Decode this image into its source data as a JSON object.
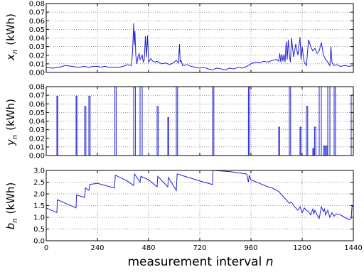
{
  "chart_data": [
    {
      "type": "line",
      "ylabel_var": "x",
      "ylabel_sub": "n",
      "ylabel_unit": "(kWh)",
      "xlim": [
        0,
        1440
      ],
      "ylim": [
        0,
        0.08
      ],
      "yticks": [
        "0.00",
        "0.01",
        "0.02",
        "0.03",
        "0.04",
        "0.05",
        "0.06",
        "0.07",
        "0.08"
      ],
      "xticks": [
        0,
        240,
        480,
        720,
        960,
        1200,
        1440
      ],
      "grid": true,
      "color": "#1f1fd6",
      "x": [
        0,
        30,
        60,
        90,
        120,
        150,
        180,
        200,
        220,
        240,
        260,
        270,
        280,
        290,
        300,
        320,
        340,
        360,
        380,
        400,
        405,
        410,
        413,
        416,
        420,
        425,
        430,
        436,
        440,
        450,
        455,
        460,
        465,
        470,
        475,
        480,
        490,
        500,
        510,
        520,
        540,
        560,
        580,
        600,
        610,
        620,
        625,
        628,
        632,
        640,
        660,
        680,
        700,
        720,
        740,
        760,
        780,
        800,
        820,
        840,
        860,
        880,
        900,
        920,
        940,
        960,
        980,
        1000,
        1020,
        1040,
        1060,
        1080,
        1090,
        1095,
        1100,
        1105,
        1110,
        1115,
        1120,
        1125,
        1130,
        1135,
        1140,
        1145,
        1150,
        1160,
        1170,
        1180,
        1190,
        1195,
        1200,
        1205,
        1210,
        1220,
        1230,
        1240,
        1250,
        1260,
        1270,
        1280,
        1290,
        1300,
        1310,
        1320,
        1330,
        1335,
        1340,
        1350,
        1360,
        1380,
        1400,
        1420,
        1440
      ],
      "values": [
        0.006,
        0.005,
        0.006,
        0.008,
        0.007,
        0.006,
        0.007,
        0.006,
        0.007,
        0.007,
        0.006,
        0.007,
        0.007,
        0.006,
        0.006,
        0.006,
        0.006,
        0.007,
        0.009,
        0.008,
        0.025,
        0.057,
        0.032,
        0.048,
        0.02,
        0.01,
        0.018,
        0.022,
        0.015,
        0.02,
        0.012,
        0.015,
        0.042,
        0.018,
        0.043,
        0.012,
        0.016,
        0.013,
        0.012,
        0.013,
        0.01,
        0.011,
        0.009,
        0.012,
        0.014,
        0.011,
        0.033,
        0.012,
        0.014,
        0.008,
        0.009,
        0.007,
        0.006,
        0.005,
        0.006,
        0.004,
        0.003,
        0.005,
        0.004,
        0.003,
        0.005,
        0.004,
        0.006,
        0.005,
        0.007,
        0.01,
        0.012,
        0.011,
        0.013,
        0.012,
        0.014,
        0.015,
        0.013,
        0.022,
        0.012,
        0.021,
        0.013,
        0.021,
        0.012,
        0.036,
        0.015,
        0.038,
        0.02,
        0.012,
        0.04,
        0.018,
        0.033,
        0.02,
        0.041,
        0.015,
        0.03,
        0.02,
        0.012,
        0.008,
        0.038,
        0.03,
        0.025,
        0.028,
        0.022,
        0.025,
        0.035,
        0.02,
        0.015,
        0.012,
        0.008,
        0.03,
        0.011,
        0.008,
        0.009,
        0.007,
        0.008,
        0.007,
        0.008
      ]
    },
    {
      "type": "line",
      "ylabel_var": "y",
      "ylabel_sub": "n",
      "ylabel_unit": "(kWh)",
      "xlim": [
        0,
        1440
      ],
      "ylim": [
        0,
        0.08
      ],
      "yticks": [
        "0.00",
        "0.01",
        "0.02",
        "0.03",
        "0.04",
        "0.05",
        "0.06",
        "0.07",
        "0.08"
      ],
      "xticks": [
        0,
        240,
        480,
        720,
        960,
        1200,
        1440
      ],
      "grid": true,
      "color": "#1f1fd6",
      "pulses": [
        [
          50,
          54,
          0.069
        ],
        [
          140,
          144,
          0.069
        ],
        [
          180,
          186,
          0.057
        ],
        [
          200,
          206,
          0.069
        ],
        [
          322,
          328,
          0.08
        ],
        [
          410,
          418,
          0.08
        ],
        [
          440,
          450,
          0.08
        ],
        [
          520,
          525,
          0.057
        ],
        [
          570,
          575,
          0.044
        ],
        [
          610,
          616,
          0.08
        ],
        [
          780,
          786,
          0.08
        ],
        [
          948,
          954,
          0.08
        ],
        [
          1090,
          1094,
          0.033
        ],
        [
          1140,
          1146,
          0.08
        ],
        [
          1190,
          1194,
          0.033
        ],
        [
          1220,
          1226,
          0.057
        ],
        [
          1250,
          1254,
          0.008
        ],
        [
          1258,
          1264,
          0.033
        ],
        [
          1280,
          1290,
          0.08
        ],
        [
          1300,
          1306,
          0.011
        ],
        [
          1310,
          1316,
          0.011
        ],
        [
          1320,
          1330,
          0.08
        ],
        [
          1350,
          1356,
          0.08
        ],
        [
          1430,
          1440,
          0.07
        ]
      ]
    },
    {
      "type": "line",
      "ylabel_var": "b",
      "ylabel_sub": "n",
      "ylabel_unit": "(kWh)",
      "xlim": [
        0,
        1440
      ],
      "ylim": [
        0,
        3.0
      ],
      "yticks": [
        "0.0",
        "0.5",
        "1.0",
        "1.5",
        "2.0",
        "2.5",
        "3.0"
      ],
      "xticks": [
        0,
        240,
        480,
        720,
        960,
        1200,
        1440
      ],
      "grid": true,
      "color": "#1f1fd6",
      "xlabel": "measurement interval",
      "xlabel_var": "n",
      "x": [
        0,
        50,
        52,
        140,
        142,
        180,
        184,
        200,
        204,
        240,
        320,
        324,
        380,
        410,
        414,
        440,
        444,
        480,
        520,
        523,
        570,
        573,
        610,
        614,
        720,
        780,
        782,
        860,
        940,
        948,
        952,
        960,
        1000,
        1040,
        1060,
        1090,
        1100,
        1140,
        1150,
        1160,
        1180,
        1190,
        1200,
        1210,
        1220,
        1230,
        1240,
        1250,
        1255,
        1260,
        1270,
        1280,
        1290,
        1300,
        1305,
        1310,
        1320,
        1330,
        1340,
        1350,
        1360,
        1380,
        1400,
        1420,
        1430,
        1434,
        1440
      ],
      "values": [
        1.4,
        1.2,
        1.75,
        1.4,
        1.95,
        1.85,
        2.25,
        2.15,
        2.4,
        2.45,
        2.25,
        2.8,
        2.55,
        2.35,
        2.85,
        2.5,
        2.75,
        2.6,
        2.3,
        2.75,
        2.3,
        2.7,
        2.15,
        2.85,
        2.55,
        2.4,
        3.0,
        2.95,
        2.85,
        2.5,
        2.8,
        2.6,
        2.45,
        2.3,
        2.25,
        2.1,
        2.0,
        1.6,
        1.65,
        1.5,
        1.3,
        1.45,
        1.2,
        1.4,
        1.3,
        1.25,
        1.1,
        1.35,
        1.15,
        1.3,
        1.1,
        0.95,
        1.45,
        1.25,
        1.35,
        1.1,
        1.3,
        1.0,
        1.2,
        1.05,
        1.15,
        1.1,
        1.0,
        0.9,
        0.95,
        1.5,
        1.45
      ]
    }
  ]
}
